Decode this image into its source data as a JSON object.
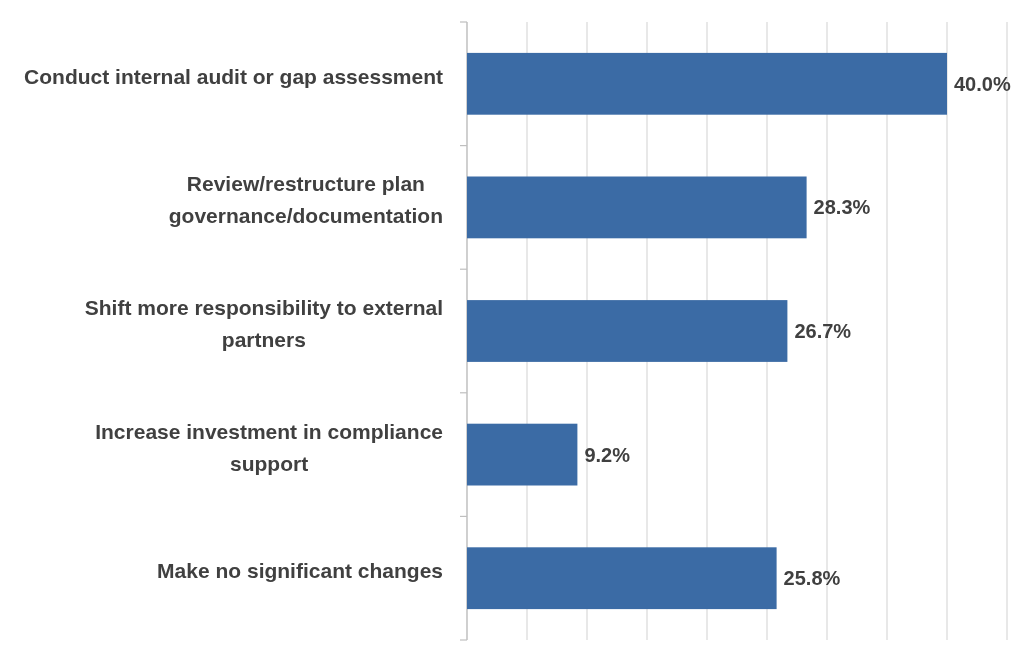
{
  "chart_data": {
    "type": "bar",
    "orientation": "horizontal",
    "categories": [
      "Conduct internal audit or gap assessment",
      "Review/restructure plan governance/documentation",
      "Shift more responsibility to external partners",
      "Increase investment in compliance support",
      "Make no significant changes"
    ],
    "values": [
      40.0,
      28.3,
      26.7,
      9.2,
      25.8
    ],
    "color": "#3b6ba5",
    "xlim": [
      0,
      45
    ],
    "xticks": [
      {
        "value": 0,
        "label": null
      },
      {
        "value": 5,
        "label": null
      },
      {
        "value": 10,
        "label": null
      },
      {
        "value": 15,
        "label": null
      },
      {
        "value": 20,
        "label": null
      },
      {
        "value": 25,
        "label": null
      },
      {
        "value": 30,
        "label": null
      },
      {
        "value": 35,
        "label": null
      },
      {
        "value": 40,
        "label": null
      },
      {
        "value": 45,
        "label": null
      }
    ],
    "value_labels": [
      "40.0%",
      "28.3%",
      "26.7%",
      "9.2%",
      "25.8%"
    ],
    "grid": "x",
    "tick_labels": "y"
  }
}
